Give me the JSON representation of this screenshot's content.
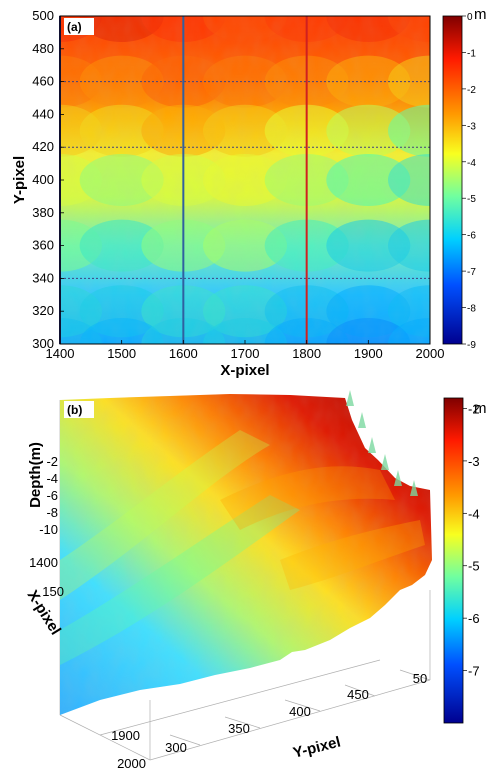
{
  "colors": {
    "colormap": [
      "#00008f",
      "#0030ff",
      "#00b4ff",
      "#4fffb0",
      "#e8ff30",
      "#ffb000",
      "#ff3000",
      "#800000"
    ],
    "red_line": "#d02020",
    "blue_line": "#3060a0",
    "dashed_line": "#404080"
  },
  "chart_data": [
    {
      "panel_label": "(a)",
      "type": "heatmap",
      "xlabel": "X-pixel",
      "ylabel": "Y-pixel",
      "xlim": [
        1400,
        2000
      ],
      "ylim": [
        300,
        500
      ],
      "x_ticks": [
        "1400",
        "1500",
        "1600",
        "1700",
        "1800",
        "1900",
        "2000"
      ],
      "y_ticks": [
        "300",
        "320",
        "340",
        "360",
        "380",
        "400",
        "420",
        "440",
        "460",
        "480",
        "500"
      ],
      "colorbar": {
        "unit": "m",
        "range": [
          -9,
          0
        ],
        "ticks": [
          "0",
          "-1",
          "-2",
          "-3",
          "-4",
          "-5",
          "-6",
          "-7",
          "-8",
          "-9"
        ]
      },
      "vertical_lines": [
        {
          "x": 1400,
          "color": "#202060"
        },
        {
          "x": 1600,
          "color": "#3060a0"
        },
        {
          "x": 1800,
          "color": "#d02020"
        }
      ],
      "horizontal_dashed_lines": [
        460,
        420,
        340
      ],
      "depth_pattern": [
        {
          "y": 500,
          "values": [
            -1.2,
            -1.0,
            -1.3,
            -1.6,
            -1.4,
            -1.2,
            -1.5
          ]
        },
        {
          "y": 460,
          "values": [
            -2.0,
            -2.2,
            -1.8,
            -2.0,
            -2.2,
            -2.5,
            -3.0
          ]
        },
        {
          "y": 430,
          "values": [
            -3.0,
            -3.2,
            -2.5,
            -3.0,
            -3.8,
            -4.2,
            -5.0
          ]
        },
        {
          "y": 400,
          "values": [
            -4.0,
            -4.6,
            -4.0,
            -3.8,
            -4.5,
            -5.2,
            -5.6
          ]
        },
        {
          "y": 360,
          "values": [
            -4.8,
            -5.5,
            -4.6,
            -4.4,
            -5.4,
            -6.0,
            -6.0
          ]
        },
        {
          "y": 320,
          "values": [
            -5.8,
            -6.0,
            -5.6,
            -5.6,
            -6.2,
            -6.5,
            -6.3
          ]
        },
        {
          "y": 300,
          "values": [
            -6.2,
            -6.4,
            -6.0,
            -6.0,
            -6.5,
            -6.8,
            -6.5
          ]
        }
      ]
    },
    {
      "panel_label": "(b)",
      "type": "surface3d",
      "xlabel": "X-pixel",
      "ylabel": "Y-pixel",
      "zlabel": "Depth(m)",
      "x_ticks": [
        "1400",
        "150",
        "1900",
        "2000"
      ],
      "y_ticks": [
        "300",
        "350",
        "400",
        "450",
        "50"
      ],
      "z_ticks": [
        "-2",
        "-4",
        "-6",
        "-8",
        "-10"
      ],
      "colorbar": {
        "unit": "m",
        "range": [
          -8,
          -1.8
        ],
        "ticks": [
          "-2",
          "-3",
          "-4",
          "-5",
          "-6",
          "-7"
        ]
      }
    }
  ]
}
